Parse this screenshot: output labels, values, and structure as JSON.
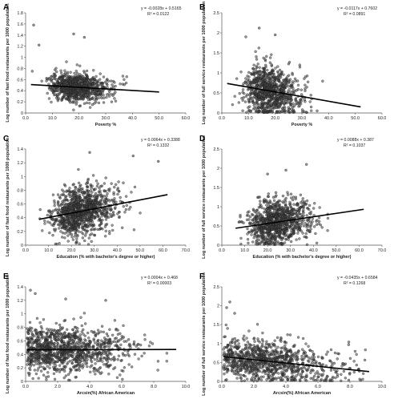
{
  "figure": {
    "background": "#ffffff",
    "point_fill": "#4a4a4a",
    "point_stroke": "#111111",
    "line_color": "#000000"
  },
  "chart_data": [
    {
      "panel": "A",
      "type": "scatter",
      "xlabel": "Poverty %",
      "ylabel": "Log number of fast food restaurants per 1000 population",
      "xlim": [
        0,
        60
      ],
      "ylim": [
        0,
        1.8
      ],
      "xticks": [
        "0.0",
        "10.0",
        "20.0",
        "30.0",
        "40.0",
        "50.0",
        "60.0"
      ],
      "yticks": [
        "0",
        "0.2",
        "0.4",
        "0.6",
        "0.8",
        "1",
        "1.2",
        "1.4",
        "1.6",
        "1.8"
      ],
      "equation": "y = -0.0028x + 0.5165",
      "r2": "R² = 0.0122",
      "slope": -0.0028,
      "intercept": 0.5165,
      "cloud": {
        "x_range": [
          2,
          50
        ],
        "x_center": 16,
        "x_spread": 7,
        "y_spread": 0.13,
        "n_points": 900,
        "outliers": [
          [
            3,
            1.58
          ],
          [
            18,
            1.42
          ],
          [
            22,
            1.36
          ],
          [
            5,
            1.22
          ]
        ]
      }
    },
    {
      "panel": "B",
      "type": "scatter",
      "xlabel": "Poverty %",
      "ylabel": "Log number of full service restaurants per 1000 population",
      "xlim": [
        0,
        60
      ],
      "ylim": [
        0,
        2.5
      ],
      "xticks": [
        "0.0",
        "10.0",
        "20.0",
        "30.0",
        "40.0",
        "50.0",
        "60.0"
      ],
      "yticks": [
        "0",
        "0.5",
        "1",
        "1.5",
        "2",
        "2.5"
      ],
      "equation": "y = -0.0117x + 0.7602",
      "r2": "R² = 0.0891",
      "slope": -0.0117,
      "intercept": 0.7602,
      "cloud": {
        "x_range": [
          2,
          52
        ],
        "x_center": 15,
        "x_spread": 7,
        "y_spread": 0.32,
        "n_points": 900,
        "outliers": [
          [
            14,
            2.12
          ],
          [
            20,
            1.95
          ],
          [
            9,
            1.9
          ]
        ]
      }
    },
    {
      "panel": "C",
      "type": "scatter",
      "xlabel": "Education (% with bachelor's degree or higher)",
      "ylabel": "Log number of fast food restaurants per 1000 population",
      "xlim": [
        0,
        70
      ],
      "ylim": [
        0,
        1.4
      ],
      "xticks": [
        "0.0",
        "10.0",
        "20.0",
        "30.0",
        "40.0",
        "50.0",
        "60.0",
        "70.0"
      ],
      "yticks": [
        "0",
        "0.2",
        "0.4",
        "0.6",
        "0.8",
        "1",
        "1.2",
        "1.4"
      ],
      "equation": "y = 0.0064x + 0.3388",
      "r2": "R² = 0.1332",
      "slope": 0.0064,
      "intercept": 0.3388,
      "cloud": {
        "x_range": [
          6,
          62
        ],
        "x_center": 20,
        "x_spread": 9,
        "y_spread": 0.17,
        "n_points": 1100,
        "outliers": [
          [
            28,
            1.35
          ],
          [
            47,
            1.3
          ],
          [
            58,
            1.22
          ]
        ]
      }
    },
    {
      "panel": "D",
      "type": "scatter",
      "xlabel": "Education (% with bachelor's degree or higher)",
      "ylabel": "Log number of full service  restaurants per 1000 population",
      "xlim": [
        0,
        70
      ],
      "ylim": [
        0,
        2.5
      ],
      "xticks": [
        "0.0",
        "10.0",
        "20.0",
        "30.0",
        "40.0",
        "50.0",
        "60.0",
        "70.0"
      ],
      "yticks": [
        "0",
        "0.5",
        "1",
        "1.5",
        "2",
        "2.5"
      ],
      "equation": "y = 0.0088x + 0.387",
      "r2": "R² = 0.1037",
      "slope": 0.0088,
      "intercept": 0.387,
      "cloud": {
        "x_range": [
          6,
          62
        ],
        "x_center": 20,
        "x_spread": 9,
        "y_spread": 0.28,
        "n_points": 1000,
        "outliers": [
          [
            37,
            2.1
          ],
          [
            28,
            1.95
          ],
          [
            20,
            1.85
          ]
        ]
      }
    },
    {
      "panel": "E",
      "type": "scatter",
      "xlabel": "Arcsin(%) African American",
      "ylabel": "Log number of fast food restaurants per 1000 population",
      "xlim": [
        0,
        10
      ],
      "ylim": [
        0,
        1.4
      ],
      "xticks": [
        "0.0",
        "2.0",
        "4.0",
        "6.0",
        "8.0",
        "10.0"
      ],
      "yticks": [
        "0",
        "0.2",
        "0.4",
        "0.6",
        "0.8",
        "1",
        "1.2",
        "1.4"
      ],
      "equation": "y = 0.0004x + 0.468",
      "r2": "R² = 0.00003",
      "slope": 0.0004,
      "intercept": 0.468,
      "cloud": {
        "x_range": [
          0.1,
          9.4
        ],
        "x_center": 1.2,
        "x_spread": 2.6,
        "y_spread": 0.17,
        "n_points": 1100,
        "outliers": [
          [
            0.3,
            1.35
          ],
          [
            0.6,
            1.3
          ],
          [
            5,
            1.2
          ],
          [
            2.5,
            1.22
          ]
        ]
      }
    },
    {
      "panel": "F",
      "type": "scatter",
      "xlabel": "Arcsin(%) African American",
      "ylabel": "Log number of full service restaurants per 1000 population",
      "xlim": [
        0,
        10
      ],
      "ylim": [
        0,
        2.5
      ],
      "xticks": [
        "0.0",
        "2.0",
        "4.0",
        "6.0",
        "8.0",
        "10.0"
      ],
      "yticks": [
        "0",
        "0.5",
        "1",
        "1.5",
        "2",
        "2.5"
      ],
      "equation": "y = -0.0435x + 0.6584",
      "r2": "R² = 0.1268",
      "slope": -0.0435,
      "intercept": 0.6584,
      "cloud": {
        "x_range": [
          0.1,
          9.2
        ],
        "x_center": 1.5,
        "x_spread": 2.8,
        "y_spread": 0.27,
        "n_points": 1000,
        "outliers": [
          [
            0.5,
            2.1
          ],
          [
            0.3,
            1.95
          ],
          [
            0.8,
            1.8
          ]
        ]
      }
    }
  ]
}
